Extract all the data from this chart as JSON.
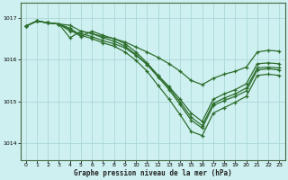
{
  "xlabel": "Graphe pression niveau de la mer (hPa)",
  "bg_color": "#cff0f0",
  "line_color": "#2d6e2d",
  "grid_color": "#aad8d8",
  "ylim": [
    1013.6,
    1017.35
  ],
  "xlim": [
    -0.5,
    23.5
  ],
  "yticks": [
    1014,
    1015,
    1016,
    1017
  ],
  "xticks": [
    0,
    1,
    2,
    3,
    4,
    5,
    6,
    7,
    8,
    9,
    10,
    11,
    12,
    13,
    14,
    15,
    16,
    17,
    18,
    19,
    20,
    21,
    22,
    23
  ],
  "series": [
    [
      1016.8,
      1016.92,
      1016.88,
      1016.85,
      1016.82,
      1016.68,
      1016.62,
      1016.55,
      1016.5,
      1016.42,
      1016.3,
      1016.18,
      1016.05,
      1015.9,
      1015.72,
      1015.5,
      1015.4,
      1015.55,
      1015.65,
      1015.72,
      1015.82,
      1016.18,
      1016.22,
      1016.2
    ],
    [
      1016.8,
      1016.92,
      1016.88,
      1016.85,
      1016.68,
      1016.62,
      1016.55,
      1016.45,
      1016.38,
      1016.28,
      1016.1,
      1015.88,
      1015.62,
      1015.35,
      1015.05,
      1014.72,
      1014.52,
      1015.05,
      1015.18,
      1015.28,
      1015.42,
      1015.9,
      1015.92,
      1015.9
    ],
    [
      1016.8,
      1016.92,
      1016.88,
      1016.85,
      1016.72,
      1016.55,
      1016.68,
      1016.58,
      1016.5,
      1016.38,
      1016.18,
      1015.92,
      1015.62,
      1015.32,
      1014.98,
      1014.62,
      1014.42,
      1014.95,
      1015.08,
      1015.18,
      1015.32,
      1015.8,
      1015.82,
      1015.8
    ],
    [
      1016.8,
      1016.92,
      1016.88,
      1016.85,
      1016.52,
      1016.68,
      1016.62,
      1016.52,
      1016.44,
      1016.32,
      1016.12,
      1015.88,
      1015.58,
      1015.28,
      1014.92,
      1014.55,
      1014.36,
      1014.9,
      1015.02,
      1015.12,
      1015.25,
      1015.75,
      1015.78,
      1015.75
    ],
    [
      1016.8,
      1016.92,
      1016.88,
      1016.85,
      1016.75,
      1016.58,
      1016.5,
      1016.4,
      1016.32,
      1016.18,
      1015.98,
      1015.72,
      1015.38,
      1015.05,
      1014.68,
      1014.28,
      1014.18,
      1014.72,
      1014.85,
      1014.98,
      1015.12,
      1015.62,
      1015.65,
      1015.62
    ]
  ]
}
